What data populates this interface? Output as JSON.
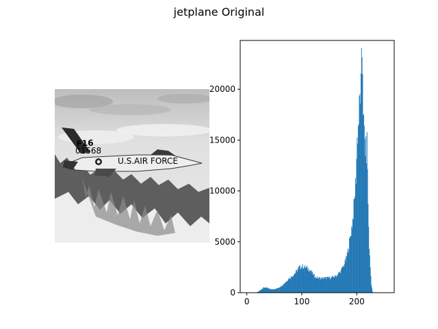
{
  "figure": {
    "suptitle": "jetplane Original",
    "image_decal_text": [
      "F16",
      "U.S.AIR FORCE",
      "01568"
    ],
    "colors": {
      "bar": "#1f77b4",
      "sky": "#d6d6d6",
      "mountains": "#5d5d5d",
      "snow": "#ececec",
      "aircraft": "#eeeeee"
    }
  },
  "chart_data": {
    "type": "bar",
    "title": "",
    "xlabel": "",
    "ylabel": "",
    "xlim": [
      -12,
      268
    ],
    "ylim": [
      0,
      24800
    ],
    "xticks": [
      0,
      100,
      200
    ],
    "yticks": [
      0,
      5000,
      10000,
      15000,
      20000
    ],
    "grid": false,
    "bin_width": 1,
    "series": [
      {
        "anchors_x": [
          0,
          15,
          20,
          25,
          30,
          35,
          40,
          45,
          50,
          55,
          60,
          65,
          70,
          75,
          80,
          85,
          90,
          95,
          100,
          105,
          110,
          115,
          120,
          125,
          130,
          135,
          140,
          145,
          150,
          155,
          160,
          165,
          170,
          175,
          180,
          185,
          188,
          192,
          195,
          198,
          200,
          203,
          205,
          207,
          208,
          209,
          210,
          211,
          212,
          213,
          215,
          217,
          218,
          219,
          220,
          222,
          224,
          226,
          228,
          230,
          255
        ],
        "anchors_y": [
          0,
          0,
          80,
          300,
          500,
          500,
          380,
          330,
          360,
          420,
          580,
          780,
          1050,
          1350,
          1550,
          1800,
          2100,
          2500,
          2600,
          2500,
          2400,
          2200,
          1800,
          1500,
          1450,
          1400,
          1450,
          1450,
          1480,
          1500,
          1600,
          1800,
          2100,
          2600,
          3300,
          4600,
          5600,
          7200,
          9000,
          11500,
          15000,
          17000,
          19000,
          20000,
          22000,
          23500,
          22500,
          18500,
          16500,
          15500,
          14200,
          13800,
          14700,
          12500,
          8500,
          4500,
          2500,
          800,
          100,
          0,
          0
        ]
      }
    ]
  }
}
